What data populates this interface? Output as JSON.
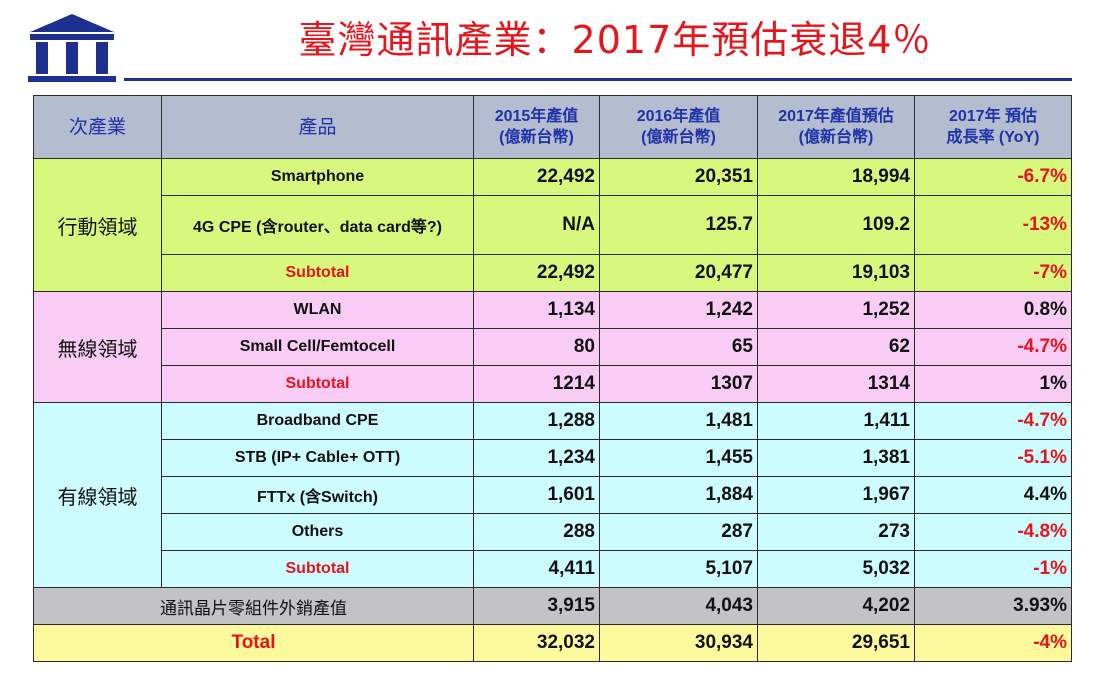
{
  "header": {
    "title": "臺灣通訊產業：2017年預估衰退4％"
  },
  "colors": {
    "title": "#e8141c",
    "header_bg": "#b4bdd0",
    "mobile_bg": "#d7f77d",
    "wireless_bg": "#f9ccf6",
    "wired_bg": "#ccfcfe",
    "chip_bg": "#c3c3c7",
    "total_bg": "#fcfa9c",
    "logo": "#1d2f8f"
  },
  "table": {
    "headers": {
      "sub_industry": "次產業",
      "product": "產品",
      "y2015": [
        "2015年產值",
        "(億新台幣)"
      ],
      "y2016": [
        "2016年產值",
        "(億新台幣)"
      ],
      "y2017": [
        "2017年產值預估",
        "(億新台幣)"
      ],
      "yoy": [
        "2017年 預估",
        "成長率 (YoY)"
      ]
    },
    "groups": [
      {
        "name": "行動領域",
        "rows": [
          {
            "product": "Smartphone",
            "v2015": "22,492",
            "v2016": "20,351",
            "v2017": "18,994",
            "yoy": "-6.7%"
          },
          {
            "product": "4G CPE (含router、data card等?)",
            "v2015": "N/A",
            "v2016": "125.7",
            "v2017": "109.2",
            "yoy": "-13%"
          },
          {
            "product": "Subtotal",
            "v2015": "22,492",
            "v2016": "20,477",
            "v2017": "19,103",
            "yoy": "-7%"
          }
        ]
      },
      {
        "name": "無線領域",
        "rows": [
          {
            "product": "WLAN",
            "v2015": "1,134",
            "v2016": "1,242",
            "v2017": "1,252",
            "yoy": "0.8%"
          },
          {
            "product": "Small Cell/Femtocell",
            "v2015": "80",
            "v2016": "65",
            "v2017": "62",
            "yoy": "-4.7%"
          },
          {
            "product": "Subtotal",
            "v2015": "1214",
            "v2016": "1307",
            "v2017": "1314",
            "yoy": "1%"
          }
        ]
      },
      {
        "name": "有線領域",
        "rows": [
          {
            "product": "Broadband CPE",
            "v2015": "1,288",
            "v2016": "1,481",
            "v2017": "1,411",
            "yoy": "-4.7%"
          },
          {
            "product": "STB (IP+ Cable+ OTT)",
            "v2015": "1,234",
            "v2016": "1,455",
            "v2017": "1,381",
            "yoy": "-5.1%"
          },
          {
            "product": "FTTx (含Switch)",
            "v2015": "1,601",
            "v2016": "1,884",
            "v2017": "1,967",
            "yoy": "4.4%"
          },
          {
            "product": "Others",
            "v2015": "288",
            "v2016": "287",
            "v2017": "273",
            "yoy": "-4.8%"
          },
          {
            "product": "Subtotal",
            "v2015": "4,411",
            "v2016": "5,107",
            "v2017": "5,032",
            "yoy": "-1%"
          }
        ]
      }
    ],
    "chip_row": {
      "label": "通訊晶片零組件外銷產值",
      "v2015": "3,915",
      "v2016": "4,043",
      "v2017": "4,202",
      "yoy": "3.93%"
    },
    "total_row": {
      "label": "Total",
      "v2015": "32,032",
      "v2016": "30,934",
      "v2017": "29,651",
      "yoy": "-4%"
    }
  }
}
